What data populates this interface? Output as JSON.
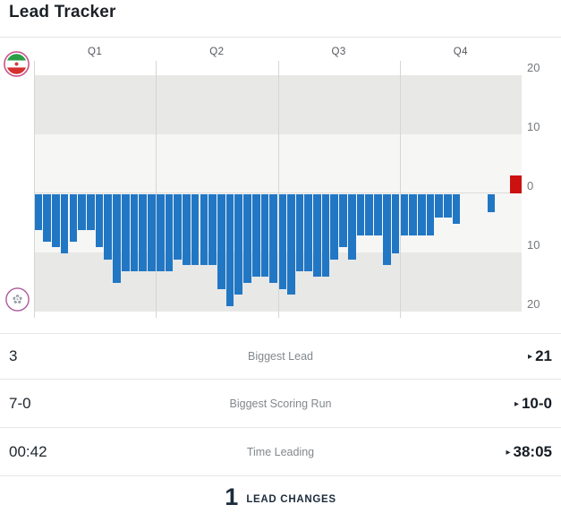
{
  "title": "Lead Tracker",
  "chart": {
    "quarter_labels": [
      "Q1",
      "Q2",
      "Q3",
      "Q4"
    ],
    "y_tick_labels": [
      "20",
      "10",
      "0",
      "10",
      "20"
    ],
    "team1_logo": "iran-flag-logo",
    "team2_logo": "white-crest-logo"
  },
  "chart_data": {
    "type": "bar",
    "title": "Lead Tracker",
    "categories": [
      "Q1",
      "Q2",
      "Q3",
      "Q4"
    ],
    "samples_per_quarter": 14,
    "ylim": [
      -20,
      20
    ],
    "y_ticks": [
      20,
      10,
      0,
      -10,
      -20
    ],
    "grid": "horizontal-bands",
    "legend": "none",
    "sign_convention": "positive = team1 (red) lead, negative = team2 (blue) lead",
    "values": [
      -6,
      -8,
      -9,
      -10,
      -8,
      -6,
      -6,
      -9,
      -11,
      -15,
      -13,
      -13,
      -13,
      -13,
      -13,
      -13,
      -11,
      -12,
      -12,
      -12,
      -12,
      -16,
      -19,
      -17,
      -15,
      -14,
      -14,
      -15,
      -16,
      -17,
      -13,
      -13,
      -14,
      -14,
      -11,
      -9,
      -11,
      -7,
      -7,
      -7,
      -12,
      -10,
      -7,
      -7,
      -7,
      -7,
      -4,
      -4,
      -5,
      0,
      0,
      0,
      -3,
      0,
      0,
      3
    ],
    "colors": {
      "team1_lead_bar": "#cc1111",
      "team2_lead_bar": "#2277c4",
      "band_dark": "#e8e8e7",
      "band_light": "#f6f6f5"
    }
  },
  "stats": {
    "rows": [
      {
        "left": "3",
        "label": "Biggest Lead",
        "arrow": "▸",
        "right": "21"
      },
      {
        "left": "7-0",
        "label": "Biggest Scoring Run",
        "arrow": "▸",
        "right": "10-0"
      },
      {
        "left": "00:42",
        "label": "Time Leading",
        "arrow": "▸",
        "right": "38:05"
      }
    ]
  },
  "lead_changes": {
    "value": "1",
    "label": "LEAD CHANGES"
  }
}
